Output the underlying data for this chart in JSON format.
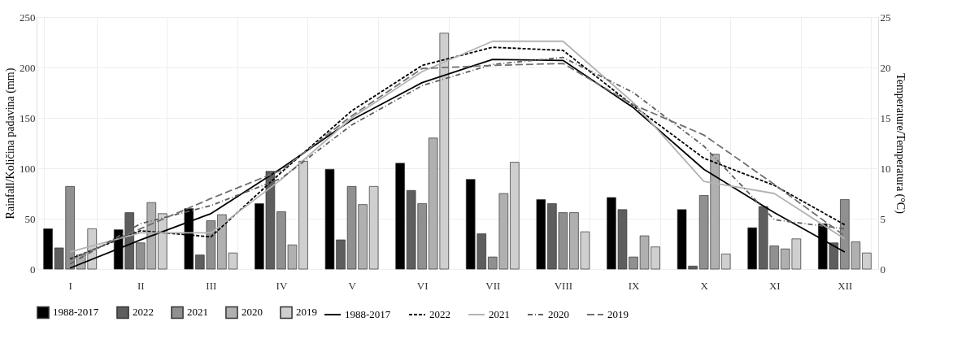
{
  "chart_data": {
    "type": "bar",
    "categories": [
      "I",
      "II",
      "III",
      "IV",
      "V",
      "VI",
      "VII",
      "VIII",
      "IX",
      "X",
      "XI",
      "XII"
    ],
    "ylabel": "Rainfall/Količina padavina (mm)",
    "y2label": "Temperature/Temperatura (°C)",
    "ylim": [
      0,
      250
    ],
    "yticks": [
      0,
      50,
      100,
      150,
      200,
      250
    ],
    "y2lim": [
      0,
      25
    ],
    "y2ticks": [
      0,
      5,
      10,
      15,
      20,
      25
    ],
    "grid": true,
    "legend": "bottom",
    "series": [
      {
        "name": "1988-2017",
        "color": "#000000",
        "values": [
          40,
          39,
          60,
          65,
          99,
          105,
          89,
          69,
          71,
          59,
          41,
          45
        ]
      },
      {
        "name": "2022",
        "color": "#5e5e5e",
        "values": [
          21,
          56,
          14,
          97,
          29,
          78,
          35,
          65,
          59,
          3,
          62,
          26
        ]
      },
      {
        "name": "2021",
        "color": "#909090",
        "values": [
          82,
          26,
          48,
          57,
          82,
          65,
          12,
          56,
          12,
          73,
          23,
          69
        ]
      },
      {
        "name": "2020",
        "color": "#b0b0b0",
        "values": [
          14,
          66,
          54,
          24,
          64,
          130,
          75,
          56,
          33,
          114,
          20,
          27
        ]
      },
      {
        "name": "2019",
        "color": "#cfcfcf",
        "values": [
          40,
          55,
          16,
          107,
          82,
          234,
          106,
          37,
          22,
          15,
          30,
          16
        ]
      },
      {
        "name": "1988-2017",
        "type": "line",
        "axis": "y2",
        "color": "#000000",
        "line_style": "solid",
        "values": [
          0.1,
          2.9,
          5.5,
          10.0,
          14.8,
          18.5,
          20.8,
          20.7,
          16.0,
          9.9,
          5.6,
          1.7
        ]
      },
      {
        "name": "2022",
        "type": "line",
        "axis": "y2",
        "color": "#000000",
        "line_style": "dashed",
        "values": [
          1.0,
          3.8,
          3.2,
          9.6,
          15.7,
          20.2,
          22.0,
          21.7,
          16.2,
          11.0,
          8.3,
          4.4
        ]
      },
      {
        "name": "2021",
        "type": "line",
        "axis": "y2",
        "color": "#b3b3b3",
        "line_style": "solid",
        "values": [
          1.7,
          3.6,
          3.6,
          8.9,
          15.0,
          19.6,
          22.6,
          22.6,
          16.5,
          8.7,
          7.5,
          3.0
        ]
      },
      {
        "name": "2020",
        "type": "line",
        "axis": "y2",
        "color": "#5f5f5f",
        "line_style": "dashdot",
        "values": [
          0.5,
          4.5,
          6.3,
          9.0,
          14.3,
          18.2,
          20.3,
          21.0,
          17.5,
          12.2,
          4.9,
          4.0
        ]
      },
      {
        "name": "2019",
        "type": "line",
        "axis": "y2",
        "color": "#707070",
        "line_style": "longdash",
        "values": [
          0.9,
          4.0,
          7.0,
          9.8,
          15.2,
          19.9,
          20.2,
          20.4,
          16.3,
          13.3,
          8.4,
          3.3
        ]
      }
    ]
  }
}
